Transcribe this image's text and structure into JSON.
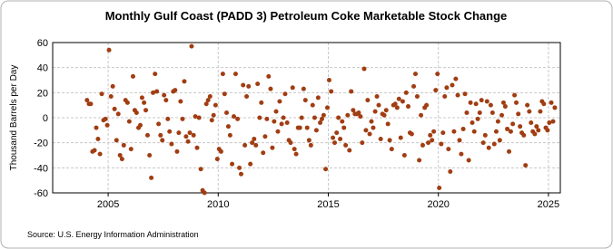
{
  "chart_data": {
    "type": "scatter",
    "title": "Monthly Gulf Coast (PADD 3) Petroleum Coke Marketable Stock Change",
    "y_label": "Thousand Barrels per Day",
    "source": "Source: U.S. Energy Information Administration",
    "color": "#a13d12",
    "grid": true,
    "xlim": [
      2002.48,
      2025.54
    ],
    "ylim": [
      -60,
      60
    ],
    "xticks": [
      2005,
      2010,
      2015,
      2020,
      2025
    ],
    "yticks": [
      -60,
      -40,
      -20,
      0,
      20,
      40,
      60
    ],
    "x": [
      2004.04,
      2004.13,
      2004.21,
      2004.29,
      2004.38,
      2004.46,
      2004.54,
      2004.63,
      2004.71,
      2004.79,
      2004.88,
      2004.96,
      2005.04,
      2005.13,
      2005.21,
      2005.29,
      2005.38,
      2005.46,
      2005.54,
      2005.63,
      2005.71,
      2005.79,
      2005.88,
      2005.96,
      2006.04,
      2006.13,
      2006.21,
      2006.29,
      2006.38,
      2006.46,
      2006.54,
      2006.63,
      2006.71,
      2006.79,
      2006.88,
      2006.96,
      2007.04,
      2007.13,
      2007.21,
      2007.29,
      2007.38,
      2007.46,
      2007.54,
      2007.63,
      2007.71,
      2007.79,
      2007.88,
      2007.96,
      2008.04,
      2008.13,
      2008.21,
      2008.29,
      2008.38,
      2008.46,
      2008.54,
      2008.63,
      2008.71,
      2008.79,
      2008.88,
      2008.96,
      2009.04,
      2009.13,
      2009.21,
      2009.29,
      2009.38,
      2009.46,
      2009.54,
      2009.63,
      2009.71,
      2009.79,
      2009.88,
      2009.96,
      2010.04,
      2010.13,
      2010.21,
      2010.29,
      2010.38,
      2010.46,
      2010.54,
      2010.63,
      2010.71,
      2010.79,
      2010.88,
      2010.96,
      2011.04,
      2011.13,
      2011.21,
      2011.29,
      2011.38,
      2011.46,
      2011.54,
      2011.63,
      2011.71,
      2011.79,
      2011.88,
      2011.96,
      2012.04,
      2012.13,
      2012.21,
      2012.29,
      2012.38,
      2012.46,
      2012.54,
      2012.63,
      2012.71,
      2012.79,
      2012.88,
      2012.96,
      2013.04,
      2013.13,
      2013.21,
      2013.29,
      2013.38,
      2013.46,
      2013.54,
      2013.63,
      2013.71,
      2013.79,
      2013.88,
      2013.96,
      2014.04,
      2014.13,
      2014.21,
      2014.29,
      2014.38,
      2014.46,
      2014.54,
      2014.63,
      2014.71,
      2014.79,
      2014.88,
      2014.96,
      2015.04,
      2015.13,
      2015.21,
      2015.29,
      2015.38,
      2015.46,
      2015.54,
      2015.63,
      2015.71,
      2015.79,
      2015.88,
      2015.96,
      2016.04,
      2016.13,
      2016.21,
      2016.29,
      2016.38,
      2016.46,
      2016.54,
      2016.63,
      2016.71,
      2016.79,
      2016.88,
      2016.96,
      2017.04,
      2017.13,
      2017.21,
      2017.29,
      2017.38,
      2017.46,
      2017.54,
      2017.63,
      2017.71,
      2017.79,
      2017.88,
      2017.96,
      2018.04,
      2018.13,
      2018.21,
      2018.29,
      2018.38,
      2018.46,
      2018.54,
      2018.63,
      2018.71,
      2018.79,
      2018.88,
      2018.96,
      2019.04,
      2019.13,
      2019.21,
      2019.29,
      2019.38,
      2019.46,
      2019.54,
      2019.63,
      2019.71,
      2019.79,
      2019.88,
      2019.96,
      2020.04,
      2020.13,
      2020.21,
      2020.29,
      2020.38,
      2020.46,
      2020.54,
      2020.63,
      2020.71,
      2020.79,
      2020.88,
      2020.96,
      2021.04,
      2021.13,
      2021.21,
      2021.29,
      2021.38,
      2021.46,
      2021.54,
      2021.63,
      2021.71,
      2021.79,
      2021.88,
      2021.96,
      2022.04,
      2022.13,
      2022.21,
      2022.29,
      2022.38,
      2022.46,
      2022.54,
      2022.63,
      2022.71,
      2022.79,
      2022.88,
      2022.96,
      2023.04,
      2023.13,
      2023.21,
      2023.29,
      2023.38,
      2023.46,
      2023.54,
      2023.63,
      2023.71,
      2023.79,
      2023.88,
      2023.96,
      2024.04,
      2024.13,
      2024.21,
      2024.29,
      2024.38,
      2024.46,
      2024.54,
      2024.63,
      2024.71,
      2024.79,
      2024.88,
      2024.96,
      2025.04,
      2025.13,
      2025.21,
      2025.29
    ],
    "values": [
      14,
      11,
      11,
      -27,
      -26,
      -8,
      -17,
      -29,
      19,
      -2,
      -1,
      -6,
      54,
      17,
      25,
      7,
      -18,
      3,
      -30,
      -33,
      -22,
      14,
      12,
      -3,
      -25,
      33,
      6,
      4,
      -8,
      -6,
      16,
      12,
      6,
      -14,
      -30,
      -48,
      20,
      35,
      21,
      -5,
      -14,
      -18,
      18,
      14,
      -1,
      -11,
      -21,
      21,
      22,
      -27,
      -12,
      13,
      -1,
      29,
      -15,
      -19,
      -12,
      57,
      -14,
      1,
      -24,
      0,
      -41,
      -58,
      -60,
      11,
      14,
      17,
      -2,
      2,
      10,
      -33,
      -25,
      -27,
      35,
      19,
      4,
      -7,
      -14,
      -37,
      1,
      35,
      -1,
      -40,
      -45,
      26,
      -22,
      17,
      25,
      -37,
      -20,
      -17,
      -22,
      27,
      0,
      12,
      -28,
      -15,
      -1,
      33,
      23,
      -24,
      -3,
      5,
      -11,
      13,
      -5,
      0,
      19,
      -4,
      -18,
      -20,
      24,
      -25,
      -29,
      -8,
      -8,
      0,
      23,
      14,
      -8,
      -18,
      -22,
      10,
      0,
      -10,
      16,
      -4,
      -1,
      2,
      -41,
      8,
      30,
      21,
      -16,
      -20,
      -12,
      0,
      -17,
      -3,
      -8,
      -22,
      2,
      -26,
      21,
      6,
      3,
      3,
      4,
      1,
      -20,
      39,
      -10,
      14,
      -13,
      -3,
      -8,
      5,
      17,
      10,
      -17,
      3,
      2,
      6,
      -5,
      -18,
      -25,
      10,
      11,
      8,
      15,
      -16,
      13,
      -30,
      20,
      9,
      -12,
      -13,
      25,
      35,
      17,
      -34,
      2,
      -22,
      8,
      10,
      -20,
      -14,
      -18,
      -11,
      22,
      35,
      -56,
      -21,
      -12,
      17,
      24,
      -25,
      -43,
      26,
      -11,
      31,
      18,
      -18,
      -29,
      -9,
      19,
      4,
      -34,
      12,
      -4,
      -11,
      11,
      -1,
      4,
      14,
      -20,
      -14,
      13,
      -24,
      10,
      4,
      -21,
      -11,
      -3,
      -18,
      2,
      12,
      9,
      -9,
      -27,
      -11,
      -5,
      18,
      12,
      3,
      -7,
      -12,
      -14,
      -38,
      10,
      5,
      -4,
      -11,
      -13,
      -7,
      -10,
      5,
      13,
      11,
      -8,
      -10,
      -4,
      12,
      -3,
      8
    ]
  }
}
